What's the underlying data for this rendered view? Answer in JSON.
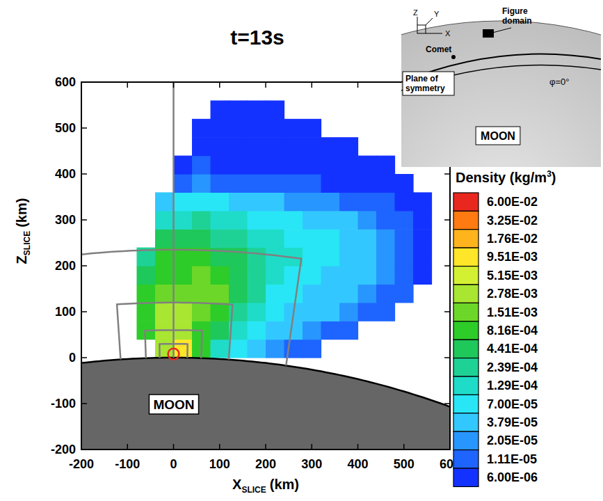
{
  "chart_data": {
    "type": "heatmap",
    "title": "t=13s",
    "x_label": {
      "main": "X",
      "sub": "SLICE",
      "unit": "(km)"
    },
    "y_label": {
      "main": "Z",
      "sub": "SLICE",
      "unit": "(km)"
    },
    "xlim": [
      -200,
      600
    ],
    "ylim": [
      -200,
      600
    ],
    "xticks": [
      -200,
      -100,
      0,
      100,
      200,
      300,
      400,
      500,
      600
    ],
    "yticks": [
      -200,
      -100,
      0,
      100,
      200,
      300,
      400,
      500,
      600
    ],
    "log": true,
    "cells": {
      "x_edges": [
        -80,
        -40,
        0,
        40,
        80,
        120,
        160,
        200,
        240,
        280,
        320,
        360,
        400,
        440,
        480,
        520,
        560
      ],
      "z_edges": [
        0,
        40,
        80,
        120,
        160,
        200,
        240,
        280,
        320,
        360,
        400,
        440,
        480,
        520,
        560
      ],
      "values": [
        [
          null,
          0.003,
          0.01,
          0.001,
          0.0002,
          0.0001,
          5e-05,
          3e-05,
          2e-05,
          1.5e-05,
          null,
          null,
          null,
          null,
          null,
          null
        ],
        [
          0.001,
          0.005,
          0.003,
          0.0015,
          0.0005,
          0.0002,
          0.0001,
          6e-05,
          4e-05,
          3e-05,
          2e-05,
          1.5e-05,
          null,
          null,
          null,
          null
        ],
        [
          0.0015,
          0.003,
          0.004,
          0.002,
          0.001,
          0.0004,
          0.00015,
          8e-05,
          6e-05,
          5e-05,
          4e-05,
          3e-05,
          2e-05,
          1.5e-05,
          null,
          null
        ],
        [
          0.001,
          0.002,
          0.002,
          0.0025,
          0.002,
          0.0008,
          0.0003,
          0.00012,
          8e-05,
          6e-05,
          5e-05,
          4e-05,
          3e-05,
          2e-05,
          1.5e-05,
          null
        ],
        [
          0.0006,
          0.0015,
          0.0015,
          0.002,
          0.0015,
          0.0008,
          0.0003,
          0.00015,
          0.0001,
          7e-05,
          6e-05,
          5e-05,
          4e-05,
          2.5e-05,
          2e-05,
          1e-05
        ],
        [
          0.0004,
          0.001,
          0.0015,
          0.001,
          0.0008,
          0.0005,
          0.0003,
          0.0002,
          0.00013,
          9e-05,
          7e-05,
          6e-05,
          4e-05,
          3e-05,
          2e-05,
          1e-05
        ],
        [
          null,
          0.0005,
          0.0006,
          0.0005,
          0.0004,
          0.0003,
          0.0002,
          0.00015,
          0.00012,
          9e-05,
          7e-05,
          5e-05,
          4e-05,
          3e-05,
          2e-05,
          1e-05
        ],
        [
          null,
          0.00015,
          0.0002,
          0.00025,
          0.0002,
          0.00015,
          0.00012,
          0.0001,
          8e-05,
          6e-05,
          5e-05,
          4e-05,
          3e-05,
          2e-05,
          1.5e-05,
          8e-06
        ],
        [
          null,
          4e-05,
          8e-05,
          8e-05,
          7e-05,
          6e-05,
          5e-05,
          4e-05,
          3.5e-05,
          3e-05,
          2.5e-05,
          2e-05,
          1.5e-05,
          1.2e-05,
          1e-05,
          7e-06
        ],
        [
          null,
          null,
          2e-05,
          2.5e-05,
          2e-05,
          2e-05,
          2e-05,
          1.5e-05,
          1.5e-05,
          1.2e-05,
          1e-05,
          1e-05,
          8e-06,
          7e-06,
          6e-06,
          null
        ],
        [
          null,
          null,
          1e-05,
          1.2e-05,
          1e-05,
          1e-05,
          1e-05,
          8e-06,
          8e-06,
          7e-06,
          7e-06,
          6e-06,
          6e-06,
          6e-06,
          null,
          null
        ],
        [
          null,
          null,
          null,
          7e-06,
          8e-06,
          8e-06,
          7e-06,
          7e-06,
          6e-06,
          6e-06,
          6e-06,
          6e-06,
          null,
          null,
          null,
          null
        ],
        [
          null,
          null,
          null,
          6e-06,
          6e-06,
          7e-06,
          6e-06,
          6e-06,
          6e-06,
          6e-06,
          null,
          null,
          null,
          null,
          null,
          null
        ],
        [
          null,
          null,
          null,
          null,
          6e-06,
          6e-06,
          6e-06,
          6e-06,
          null,
          null,
          null,
          null,
          null,
          null,
          null,
          null
        ]
      ]
    },
    "colorbar": {
      "title": {
        "main": "Density (kg/m",
        "sup": "3",
        "end": ")"
      },
      "range": [
        6e-06,
        0.06
      ],
      "ticks": [
        {
          "value": 0.06,
          "label": "6.00E-02"
        },
        {
          "value": 0.0325,
          "label": "3.25E-02"
        },
        {
          "value": 0.0176,
          "label": "1.76E-02"
        },
        {
          "value": 0.00951,
          "label": "9.51E-03"
        },
        {
          "value": 0.00515,
          "label": "5.15E-03"
        },
        {
          "value": 0.00278,
          "label": "2.78E-03"
        },
        {
          "value": 0.00151,
          "label": "1.51E-03"
        },
        {
          "value": 0.000816,
          "label": "8.16E-04"
        },
        {
          "value": 0.000441,
          "label": "4.41E-04"
        },
        {
          "value": 0.000239,
          "label": "2.39E-04"
        },
        {
          "value": 0.000129,
          "label": "1.29E-04"
        },
        {
          "value": 7e-05,
          "label": "7.00E-05"
        },
        {
          "value": 3.79e-05,
          "label": "3.79E-05"
        },
        {
          "value": 2.05e-05,
          "label": "2.05E-05"
        },
        {
          "value": 1.11e-05,
          "label": "1.11E-05"
        },
        {
          "value": 6e-06,
          "label": "6.00E-06"
        }
      ],
      "colors": [
        "#e8281e",
        "#ff7a10",
        "#ffb41e",
        "#ffe628",
        "#d4f032",
        "#a8e632",
        "#6cd728",
        "#2ecc28",
        "#1ec85a",
        "#1ed296",
        "#1edcc8",
        "#28e6f5",
        "#32c8ff",
        "#2896ff",
        "#1e64ff",
        "#1432ff"
      ]
    },
    "moon": {
      "label": "MOON",
      "radius": 1737
    },
    "comet": {
      "x": 0,
      "z": 8,
      "radius": 12
    },
    "symmetry_line_x": 0,
    "boxes": [
      {
        "x_left": -200,
        "x_right": 245,
        "top": 235
      },
      {
        "x_left": -115,
        "x_right": 120,
        "top": 120
      },
      {
        "x_left": -60,
        "x_right": 60,
        "top": 60
      },
      {
        "x_left": -30,
        "x_right": 30,
        "top": 30
      }
    ],
    "inset": {
      "axes": [
        "Z",
        "Y",
        "X"
      ],
      "comet": "Comet",
      "figure_domain": [
        "Figure",
        "domain"
      ],
      "plane": [
        "Plane of",
        "symmetry"
      ],
      "phi": "φ=0°",
      "moon": "MOON"
    }
  }
}
